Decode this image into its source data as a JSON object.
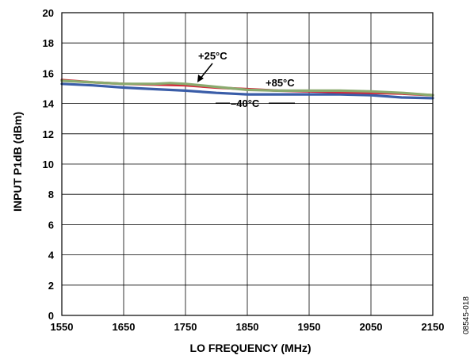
{
  "chart_data": {
    "type": "line",
    "title": "",
    "xlabel": "LO FREQUENCY (MHz)",
    "ylabel": "INPUT P1dB (dBm)",
    "xlim": [
      1550,
      2150
    ],
    "ylim": [
      0,
      20
    ],
    "xticks": [
      1550,
      1650,
      1750,
      1850,
      1950,
      2050,
      2150
    ],
    "yticks": [
      0,
      2,
      4,
      6,
      8,
      10,
      12,
      14,
      16,
      18,
      20
    ],
    "grid": true,
    "legend": "none",
    "figure_id": "08545-018",
    "series": [
      {
        "name": "+25°C",
        "color": "#8aaa6e",
        "x": [
          1550,
          1600,
          1650,
          1700,
          1725,
          1750,
          1800,
          1850,
          1900,
          1950,
          2000,
          2050,
          2100,
          2150
        ],
        "y": [
          15.5,
          15.4,
          15.3,
          15.3,
          15.35,
          15.3,
          15.1,
          14.9,
          14.85,
          14.85,
          14.85,
          14.8,
          14.7,
          14.55
        ]
      },
      {
        "name": "+85°C",
        "color": "#d42a3c",
        "x": [
          1550,
          1600,
          1650,
          1700,
          1750,
          1800,
          1850,
          1900,
          1950,
          2000,
          2050,
          2100,
          2150
        ],
        "y": [
          15.55,
          15.4,
          15.3,
          15.25,
          15.2,
          15.05,
          14.95,
          14.85,
          14.8,
          14.75,
          14.7,
          14.65,
          14.55
        ]
      },
      {
        "name": "−40°C",
        "color": "#3a5da8",
        "x": [
          1550,
          1600,
          1650,
          1700,
          1750,
          1800,
          1850,
          1900,
          1950,
          2000,
          2050,
          2100,
          2150
        ],
        "y": [
          15.3,
          15.2,
          15.05,
          14.95,
          14.85,
          14.7,
          14.6,
          14.6,
          14.6,
          14.6,
          14.55,
          14.4,
          14.35
        ]
      }
    ],
    "annotations": [
      {
        "text": "+25°C",
        "series": "+25°C"
      },
      {
        "text": "+85°C",
        "series": "+85°C"
      },
      {
        "text": "–40°C",
        "series": "−40°C"
      }
    ]
  }
}
